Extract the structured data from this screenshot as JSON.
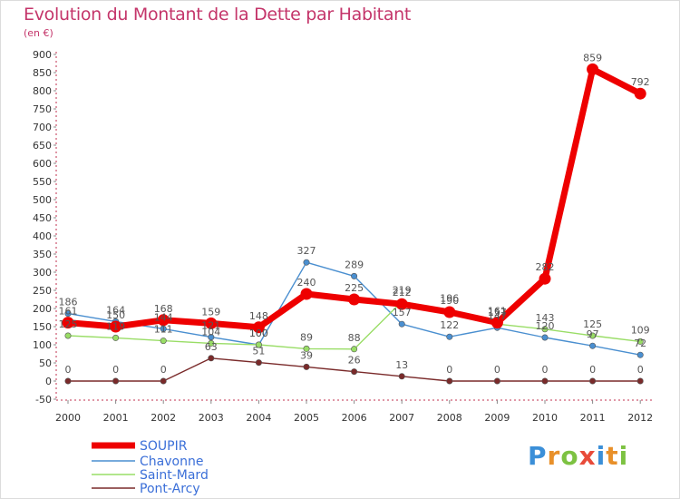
{
  "header": {
    "title": "Evolution du Montant de la Dette par Habitant",
    "subtitle": "(en €)"
  },
  "logo": {
    "text": "Proxiti",
    "letters": [
      {
        "ch": "P",
        "color": "#3b8fd8"
      },
      {
        "ch": "r",
        "color": "#e8902a"
      },
      {
        "ch": "o",
        "color": "#7dc242"
      },
      {
        "ch": "x",
        "color": "#e84b3a"
      },
      {
        "ch": "i",
        "color": "#3b8fd8"
      },
      {
        "ch": "t",
        "color": "#e8902a"
      },
      {
        "ch": "i",
        "color": "#7dc242"
      }
    ]
  },
  "chart_data": {
    "type": "line",
    "title": "Evolution du Montant de la Dette par Habitant",
    "subtitle": "(en €)",
    "x": [
      "2000",
      "2001",
      "2002",
      "2003",
      "2004",
      "2005",
      "2006",
      "2007",
      "2008",
      "2009",
      "2010",
      "2011",
      "2012"
    ],
    "yticks": [
      -50,
      0,
      50,
      100,
      150,
      200,
      250,
      300,
      350,
      400,
      450,
      500,
      550,
      600,
      650,
      700,
      750,
      800,
      850,
      900
    ],
    "ylim": [
      -50,
      900
    ],
    "grid": false,
    "legend_position": "bottom-left",
    "series": [
      {
        "name": "SOUPIR",
        "color": "#ee0000",
        "values": [
          161,
          150,
          168,
          159,
          148,
          240,
          225,
          212,
          190,
          161,
          282,
          859,
          792
        ],
        "labels": [
          "161",
          "150",
          "168",
          "159",
          "148",
          "240",
          "225",
          "212",
          "190",
          "161",
          "282",
          "859",
          "792"
        ]
      },
      {
        "name": "Chavonne",
        "color": "#4a8fd0",
        "values": [
          186,
          164,
          144,
          121,
          100,
          327,
          289,
          157,
          122,
          147,
          120,
          97,
          72
        ],
        "labels": [
          "186",
          "164",
          "144",
          "121",
          "100",
          "327",
          "289",
          "157",
          "122",
          "147",
          "120",
          "97",
          "72"
        ]
      },
      {
        "name": "Saint-Mard",
        "color": "#99dd66",
        "values": [
          125,
          119,
          111,
          104,
          100,
          89,
          88,
          219,
          196,
          157,
          143,
          125,
          109
        ],
        "labels": [
          "125",
          "119",
          "111",
          "104",
          "100",
          "89",
          "88",
          "219",
          "196",
          "157",
          "143",
          "125",
          "109"
        ]
      },
      {
        "name": "Pont-Arcy",
        "color": "#7a2a2a",
        "values": [
          0,
          0,
          0,
          63,
          51,
          39,
          26,
          13,
          0,
          0,
          0,
          0,
          0
        ],
        "labels": [
          "0",
          "0",
          "0",
          "63",
          "51",
          "39",
          "26",
          "13",
          "0",
          "0",
          "0",
          "0",
          "0"
        ]
      }
    ]
  }
}
